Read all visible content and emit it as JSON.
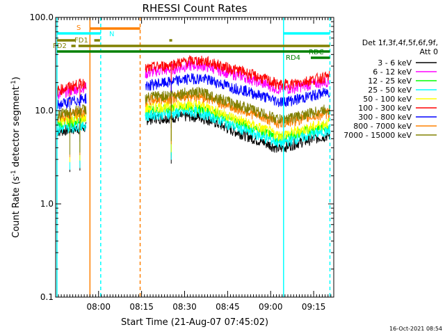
{
  "chart_data": {
    "type": "line",
    "title": "RHESSI Count Rates",
    "xlabel": "Start Time (21-Aug-07 07:45:02)",
    "ylabel": "Count Rate (s",
    "ylabel_sup1": "-1",
    "ylabel_mid": " detector segment",
    "ylabel_sup2": "-1",
    "ylabel_end": ")",
    "ylog": true,
    "ylim": [
      0.1,
      100
    ],
    "xlim": [
      "07:45:02",
      "09:22:00"
    ],
    "yticks": [
      {
        "value": 0.1,
        "label": "0.1"
      },
      {
        "value": 1.0,
        "label": "1.0"
      },
      {
        "value": 10.0,
        "label": "10.0"
      },
      {
        "value": 100.0,
        "label": "100.0"
      }
    ],
    "xticks": [
      "08:00",
      "08:15",
      "08:30",
      "08:45",
      "09:00",
      "09:15"
    ],
    "timestamp": "16-Oct-2021 08:54",
    "legend": {
      "title1": "Det 1f,3f,4f,5f,6f,9f,",
      "title2": "Att 0",
      "placement": "right"
    },
    "series": [
      {
        "name": "3 - 6 keV",
        "color": "#000000",
        "level": [
          6.0,
          8.2,
          5.5,
          3.9,
          4.4,
          5.5
        ]
      },
      {
        "name": "6 - 12 keV",
        "color": "#ff00ff",
        "level": [
          15.0,
          26.0,
          23.0,
          17.0,
          17.5,
          21.0
        ]
      },
      {
        "name": "12 - 25 keV",
        "color": "#00ff00",
        "level": [
          7.2,
          10.0,
          7.0,
          5.0,
          5.5,
          7.0
        ]
      },
      {
        "name": "25 - 50 keV",
        "color": "#00ffff",
        "level": [
          6.3,
          9.0,
          6.2,
          4.5,
          4.9,
          6.2
        ]
      },
      {
        "name": "50 - 100 keV",
        "color": "#ffff00",
        "level": [
          7.6,
          10.8,
          7.6,
          5.4,
          5.9,
          7.5
        ]
      },
      {
        "name": "100 - 300 keV",
        "color": "#ff0000",
        "level": [
          16.5,
          29.0,
          26.0,
          19.0,
          19.5,
          23.5
        ]
      },
      {
        "name": "300 - 800 keV",
        "color": "#0000ff",
        "level": [
          11.5,
          19.0,
          16.5,
          12.5,
          13.0,
          16.0
        ]
      },
      {
        "name": "800 - 7000 keV",
        "color": "#ff8000",
        "level": [
          8.5,
          13.0,
          10.0,
          7.3,
          7.8,
          9.5
        ]
      },
      {
        "name": "7000 - 15000 keV",
        "color": "#808000",
        "level": [
          9.0,
          14.0,
          11.0,
          8.0,
          8.5,
          10.5
        ]
      }
    ],
    "attenuator_bars": [
      {
        "label": "S",
        "color": "#ff8000"
      },
      {
        "label": "N",
        "color": "#00ffff"
      },
      {
        "label": "FD1",
        "color": "#808000"
      },
      {
        "label": "FD2",
        "color": "#808000"
      },
      {
        "label": "RD4",
        "color": "#008000"
      },
      {
        "label": "RDC",
        "color": "#008000"
      }
    ]
  }
}
